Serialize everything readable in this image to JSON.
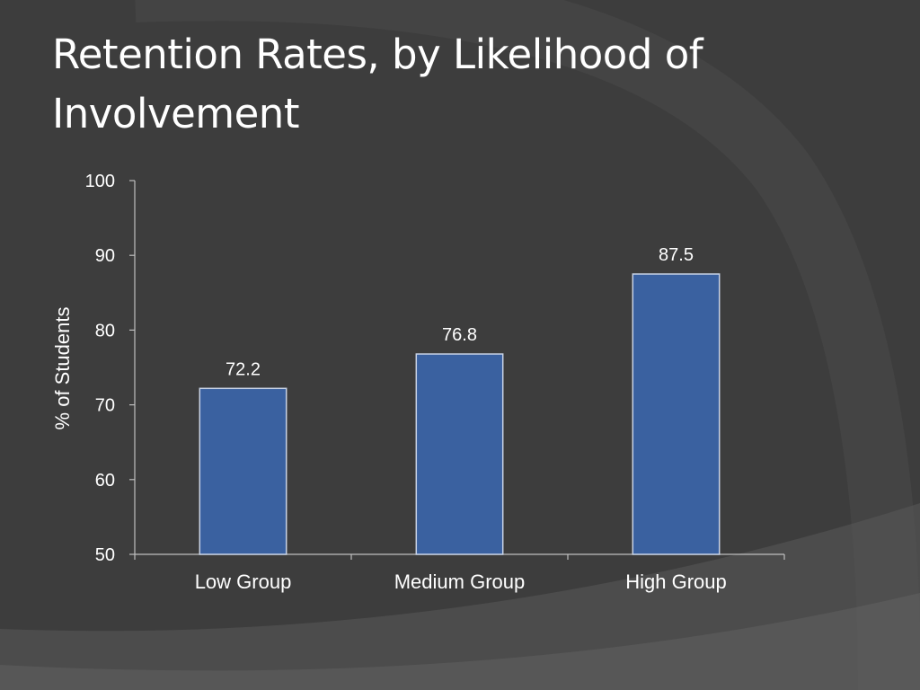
{
  "slide": {
    "title": "Retention Rates, by Likelihood of Involvement"
  },
  "colors": {
    "background": "#3d3d3d",
    "bar_fill": "#3a61a0",
    "bar_stroke": "#c8d3e6",
    "axis": "#bfbfbf",
    "text": "#ffffff"
  },
  "chart_data": {
    "type": "bar",
    "title": "",
    "xlabel": "",
    "ylabel": "% of Students",
    "categories": [
      "Low Group",
      "Medium Group",
      "High Group"
    ],
    "values": [
      72.2,
      76.8,
      87.5
    ],
    "data_labels": [
      "72.2",
      "76.8",
      "87.5"
    ],
    "ylim": [
      50,
      100
    ],
    "yticks": [
      50,
      60,
      70,
      80,
      90,
      100
    ],
    "grid": false,
    "legend": "none"
  }
}
